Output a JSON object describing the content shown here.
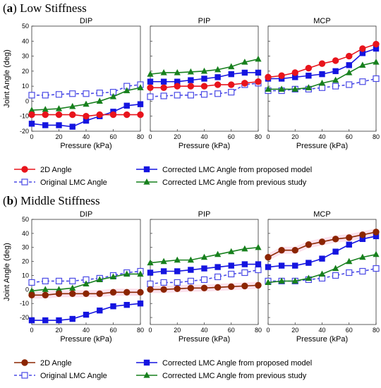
{
  "figure": {
    "sections": [
      {
        "label": "a",
        "title": "Low Stiffness"
      },
      {
        "label": "b",
        "title": "Middle Stiffness"
      }
    ],
    "legend": [
      {
        "label": "2D Angle",
        "color": "#e8141c",
        "marker": "circle",
        "dash": false
      },
      {
        "label": "Corrected LMC Angle from proposed model",
        "color": "#1414e0",
        "marker": "square",
        "dash": false
      },
      {
        "label": "Original LMC Angle",
        "color": "#4a4ae6",
        "marker": "square-open",
        "dash": true
      },
      {
        "label": "Corrected LMC Angle from previous study",
        "color": "#17801d",
        "marker": "triangle",
        "dash": false
      }
    ],
    "legend_b_first_color": "#8b2500"
  },
  "chart_data": [
    {
      "type": "line",
      "section": "a",
      "title": "DIP",
      "xlabel": "Pressure (kPa)",
      "ylabel": "Joint Angle (deg)",
      "xlim": [
        0,
        80
      ],
      "ylim": [
        -20,
        50
      ],
      "xticks": [
        0,
        20,
        40,
        60,
        80
      ],
      "yticks": [
        -20,
        -10,
        0,
        10,
        20,
        30,
        40,
        50
      ],
      "x": [
        0,
        10,
        20,
        30,
        40,
        50,
        60,
        70,
        80
      ],
      "series": [
        {
          "name": "2D Angle",
          "values": [
            -9,
            -9,
            -9,
            -9,
            -10,
            -9,
            -9,
            -9,
            -9
          ]
        },
        {
          "name": "Original LMC Angle",
          "values": [
            4,
            4,
            4.5,
            5,
            5,
            5.5,
            6,
            10,
            11
          ]
        },
        {
          "name": "Corrected LMC Angle from proposed model",
          "values": [
            -15,
            -16,
            -16,
            -17,
            -13,
            -10,
            -7,
            -3,
            -2
          ]
        },
        {
          "name": "Corrected LMC Angle from previous study",
          "values": [
            -6,
            -5.5,
            -5,
            -3.5,
            -2,
            0,
            3,
            7,
            9
          ]
        }
      ]
    },
    {
      "type": "line",
      "section": "a",
      "title": "PIP",
      "xlabel": "Pressure (kPa)",
      "xlim": [
        0,
        80
      ],
      "ylim": [
        -20,
        50
      ],
      "xticks": [
        0,
        20,
        40,
        60,
        80
      ],
      "yticks": [
        -20,
        -10,
        0,
        10,
        20,
        30,
        40,
        50
      ],
      "x": [
        0,
        10,
        20,
        30,
        40,
        50,
        60,
        70,
        80
      ],
      "series": [
        {
          "name": "2D Angle",
          "values": [
            9,
            9,
            10,
            10,
            10,
            11,
            11,
            12,
            13
          ]
        },
        {
          "name": "Original LMC Angle",
          "values": [
            3,
            3.5,
            4,
            4,
            4.5,
            5,
            6,
            11,
            12
          ]
        },
        {
          "name": "Corrected LMC Angle from proposed model",
          "values": [
            13,
            13,
            13,
            14,
            15,
            16,
            18,
            19,
            19
          ]
        },
        {
          "name": "Corrected LMC Angle from previous study",
          "values": [
            18,
            19,
            19,
            19.5,
            20,
            21,
            23,
            26,
            28
          ]
        }
      ]
    },
    {
      "type": "line",
      "section": "a",
      "title": "MCP",
      "xlabel": "Pressure (kPa)",
      "xlim": [
        0,
        80
      ],
      "ylim": [
        -20,
        50
      ],
      "xticks": [
        0,
        20,
        40,
        60,
        80
      ],
      "yticks": [
        -20,
        -10,
        0,
        10,
        20,
        30,
        40,
        50
      ],
      "x": [
        0,
        10,
        20,
        30,
        40,
        50,
        60,
        70,
        80
      ],
      "series": [
        {
          "name": "2D Angle",
          "values": [
            16,
            17,
            19,
            22,
            25,
            27,
            30,
            35,
            38
          ]
        },
        {
          "name": "Original LMC Angle",
          "values": [
            7,
            7,
            8,
            8,
            9,
            10,
            11,
            13,
            15
          ]
        },
        {
          "name": "Corrected LMC Angle from proposed model",
          "values": [
            15,
            15,
            16,
            17,
            18,
            20,
            24,
            32,
            35
          ]
        },
        {
          "name": "Corrected LMC Angle from previous study",
          "values": [
            8,
            8,
            8,
            9,
            12,
            14,
            19,
            24,
            26
          ]
        }
      ]
    },
    {
      "type": "line",
      "section": "b",
      "title": "DIP",
      "xlabel": "Pressure (kPa)",
      "ylabel": "Joint Angle (deg)",
      "xlim": [
        0,
        80
      ],
      "ylim": [
        -25,
        50
      ],
      "xticks": [
        0,
        20,
        40,
        60,
        80
      ],
      "yticks": [
        -20,
        -10,
        0,
        10,
        20,
        30,
        40,
        50
      ],
      "x": [
        0,
        10,
        20,
        30,
        40,
        50,
        60,
        70,
        80
      ],
      "series": [
        {
          "name": "2D Angle",
          "values": [
            -4,
            -4,
            -3,
            -3,
            -3,
            -3,
            -2,
            -2,
            -2
          ]
        },
        {
          "name": "Original LMC Angle",
          "values": [
            5,
            6,
            6,
            6,
            7,
            8,
            10,
            12,
            13
          ]
        },
        {
          "name": "Corrected LMC Angle from proposed model",
          "values": [
            -22,
            -22,
            -22,
            -21,
            -18,
            -15,
            -12,
            -11,
            -10
          ]
        },
        {
          "name": "Corrected LMC Angle from previous study",
          "values": [
            -1,
            0,
            0,
            1,
            4,
            7,
            9,
            11,
            11
          ]
        }
      ]
    },
    {
      "type": "line",
      "section": "b",
      "title": "PIP",
      "xlabel": "Pressure (kPa)",
      "xlim": [
        0,
        80
      ],
      "ylim": [
        -25,
        50
      ],
      "xticks": [
        0,
        20,
        40,
        60,
        80
      ],
      "yticks": [
        -20,
        -10,
        0,
        10,
        20,
        30,
        40,
        50
      ],
      "x": [
        0,
        10,
        20,
        30,
        40,
        50,
        60,
        70,
        80
      ],
      "series": [
        {
          "name": "2D Angle",
          "values": [
            0,
            0,
            0.5,
            1,
            1,
            1.5,
            2,
            2.5,
            3
          ]
        },
        {
          "name": "Original LMC Angle",
          "values": [
            4,
            5,
            5,
            6,
            7,
            9,
            11,
            12,
            14
          ]
        },
        {
          "name": "Corrected LMC Angle from proposed model",
          "values": [
            12,
            13,
            13,
            14,
            15,
            16,
            17,
            18,
            18
          ]
        },
        {
          "name": "Corrected LMC Angle from previous study",
          "values": [
            19,
            20,
            21,
            21,
            23,
            25,
            27,
            29,
            30
          ]
        }
      ]
    },
    {
      "type": "line",
      "section": "b",
      "title": "MCP",
      "xlabel": "Pressure (kPa)",
      "xlim": [
        0,
        80
      ],
      "ylim": [
        -25,
        50
      ],
      "xticks": [
        0,
        20,
        40,
        60,
        80
      ],
      "yticks": [
        -20,
        -10,
        0,
        10,
        20,
        30,
        40,
        50
      ],
      "x": [
        0,
        10,
        20,
        30,
        40,
        50,
        60,
        70,
        80
      ],
      "series": [
        {
          "name": "2D Angle",
          "values": [
            23,
            28,
            28,
            32,
            34,
            36,
            37,
            39,
            41
          ]
        },
        {
          "name": "Original LMC Angle",
          "values": [
            6,
            6,
            6,
            7,
            8,
            10,
            12,
            13,
            15
          ]
        },
        {
          "name": "Corrected LMC Angle from proposed model",
          "values": [
            16,
            17,
            17,
            19,
            22,
            27,
            32,
            36,
            38
          ]
        },
        {
          "name": "Corrected LMC Angle from previous study",
          "values": [
            5,
            6,
            6,
            8,
            11,
            15,
            20,
            23,
            25
          ]
        }
      ]
    }
  ]
}
